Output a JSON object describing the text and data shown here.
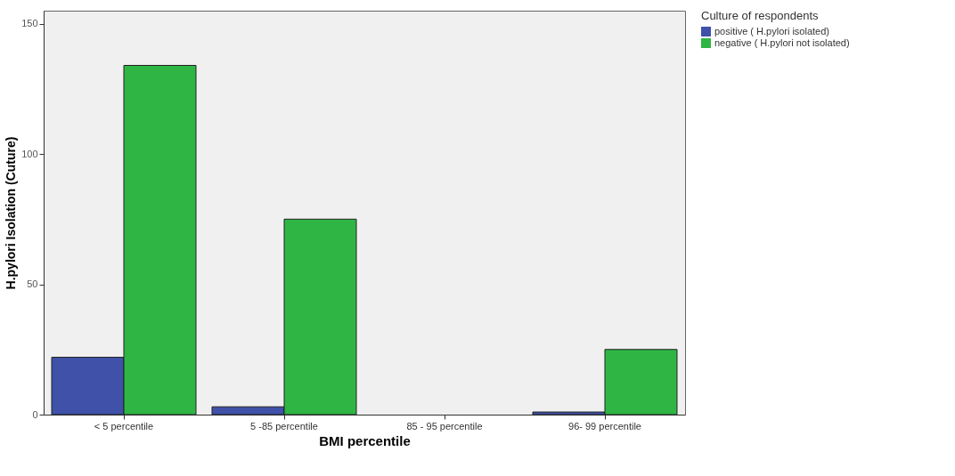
{
  "chart_data": {
    "type": "bar",
    "xlabel": "BMI percentile",
    "ylabel": "H.pylori Isolation (Cuture)",
    "legend_title": "Culture of respondents",
    "legend": "top right",
    "grid": false,
    "categories": [
      "< 5 percentile",
      "5 -85 percentile",
      "85 - 95 percentile",
      "96- 99 percentile"
    ],
    "ylim": [
      0,
      155
    ],
    "yticks": [
      0,
      50,
      100,
      150
    ],
    "series": [
      {
        "name": "positive ( H.pylori isolated)",
        "color": "#3f51a8",
        "values": [
          22,
          3,
          0,
          1
        ]
      },
      {
        "name": "negative ( H.pylori not isolated)",
        "color": "#2fb544",
        "values": [
          134,
          75,
          0,
          25
        ]
      }
    ]
  }
}
